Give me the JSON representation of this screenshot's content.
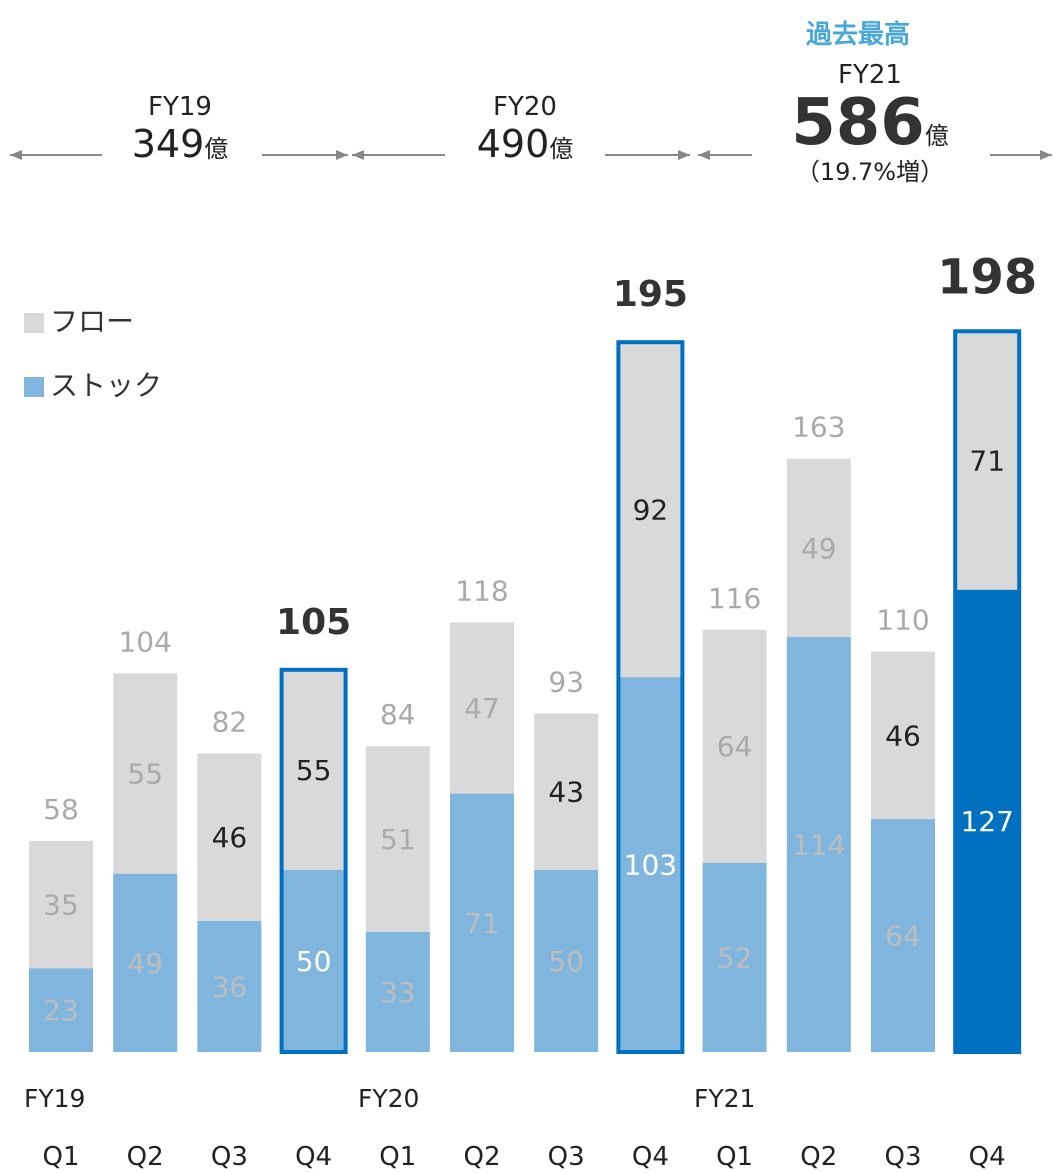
{
  "highlight_label": "過去最高",
  "fiscal_years": [
    {
      "name": "FY19",
      "total": "349",
      "unit": "億",
      "growth": ""
    },
    {
      "name": "FY20",
      "total": "490",
      "unit": "億",
      "growth": ""
    },
    {
      "name": "FY21",
      "total": "586",
      "unit": "億",
      "growth": "（19.7%増）"
    }
  ],
  "chart_data": {
    "type": "bar",
    "stacked": true,
    "categories": [
      "Q1",
      "Q2",
      "Q3",
      "Q4",
      "Q1",
      "Q2",
      "Q3",
      "Q4",
      "Q1",
      "Q2",
      "Q3",
      "Q4"
    ],
    "groups": [
      "FY19",
      "FY20",
      "FY21"
    ],
    "series": [
      {
        "name": "ストック",
        "color": "#80b5de",
        "values": [
          23,
          49,
          36,
          50,
          33,
          71,
          50,
          103,
          52,
          114,
          64,
          127
        ]
      },
      {
        "name": "フロー",
        "color": "#d9d9d9",
        "values": [
          35,
          55,
          46,
          55,
          51,
          47,
          43,
          92,
          64,
          49,
          46,
          71
        ]
      }
    ],
    "totals": [
      58,
      104,
      82,
      105,
      84,
      118,
      93,
      195,
      116,
      163,
      110,
      198
    ],
    "highlighted": [
      3,
      7,
      11
    ],
    "accent_color": "#0070c0",
    "legend": {
      "position": "top-left",
      "entries": [
        "フロー",
        "ストック"
      ]
    },
    "ylim": [
      0,
      210
    ],
    "grid": false
  }
}
